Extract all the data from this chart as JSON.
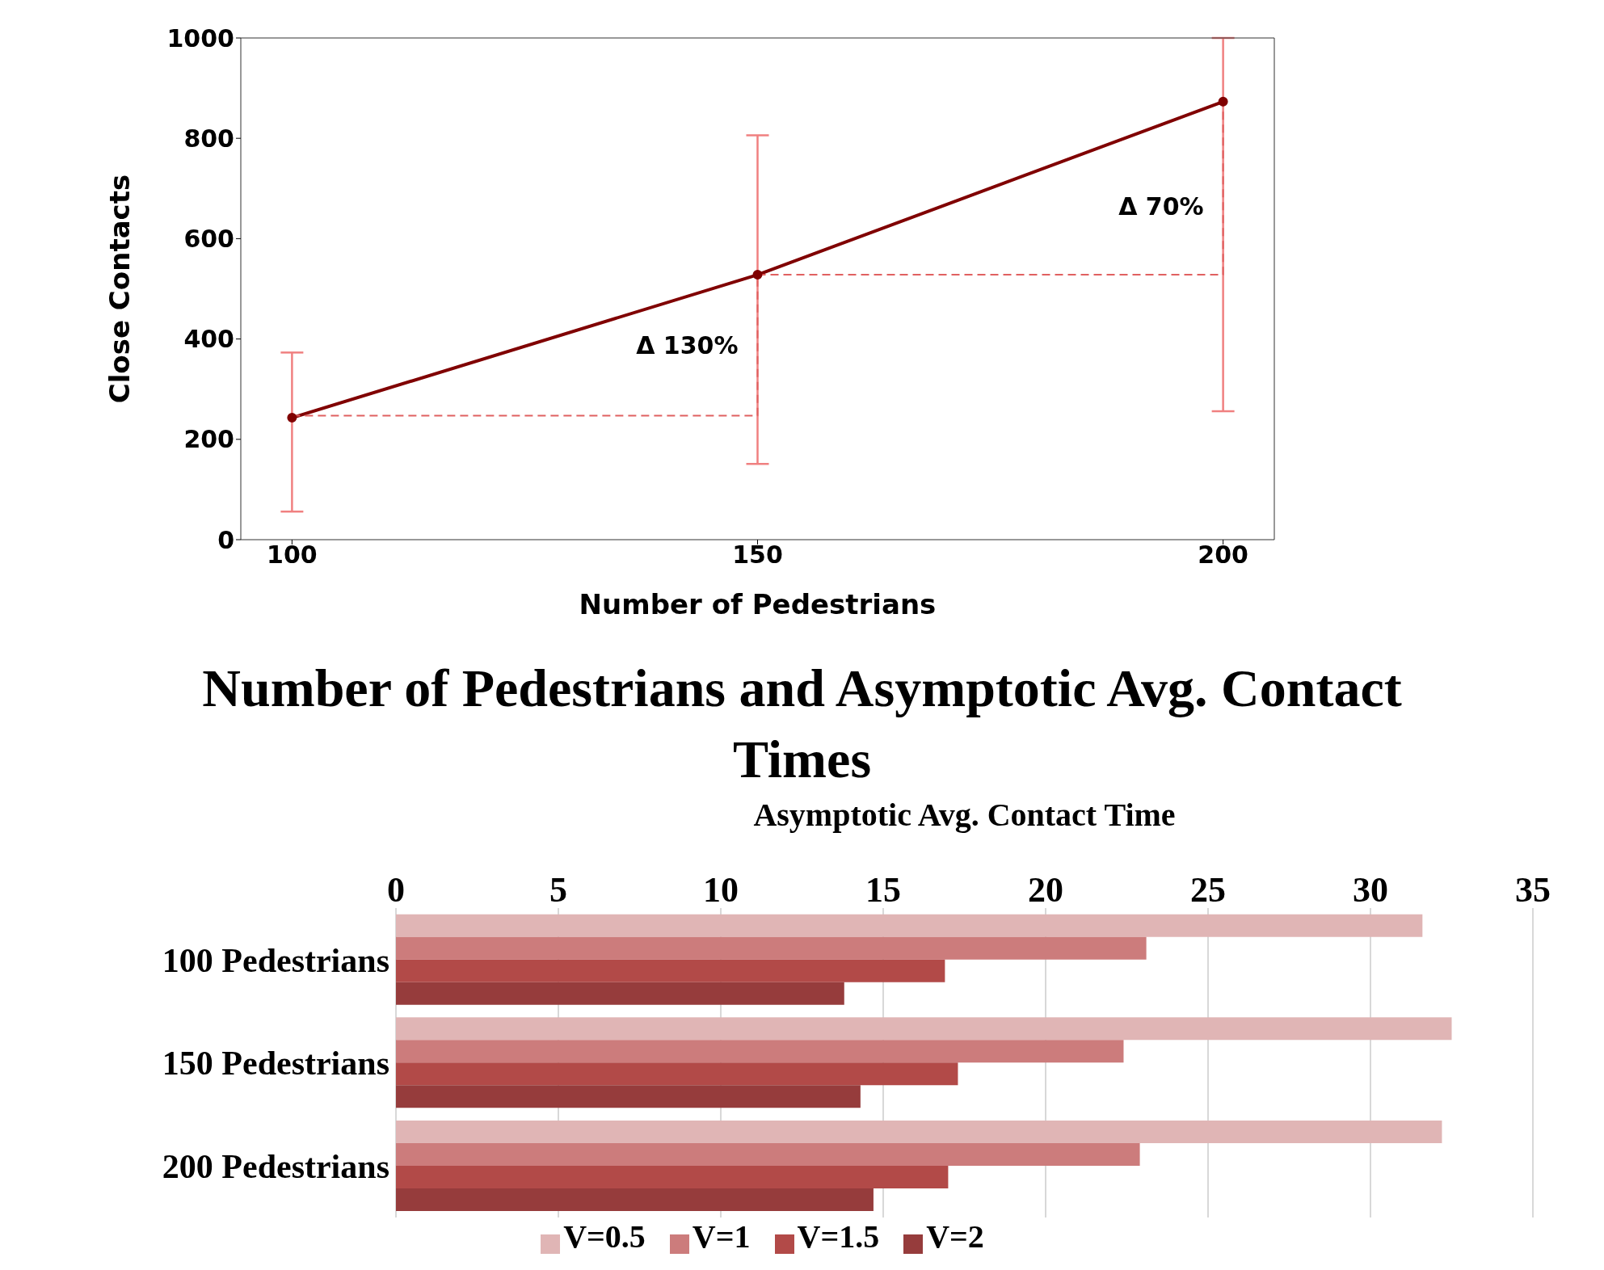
{
  "chart_data": [
    {
      "type": "line",
      "xlabel": "Number of Pedestrians",
      "ylabel": "Close Contacts",
      "xlim": [
        94.5,
        205.5
      ],
      "xticks": [
        100,
        150,
        200
      ],
      "ylim": [
        0,
        1000
      ],
      "yticks": [
        0,
        200,
        400,
        600,
        800,
        1000
      ],
      "grid": false,
      "legend": false,
      "marker": "circle",
      "line_style": "solid",
      "series": [
        {
          "x": [
            100,
            150,
            200
          ],
          "values": [
            243,
            528,
            873
          ],
          "color": "#800000",
          "errors": [
            [
              56,
              373
            ],
            [
              151,
              806
            ],
            [
              256,
              1000
            ]
          ]
        },
        {
          "x": [
            100,
            150,
            150
          ],
          "values": [
            247,
            247,
            528
          ],
          "color": "#e06060",
          "line_style": "dashed",
          "marker": "none"
        },
        {
          "x": [
            150,
            200,
            200
          ],
          "values": [
            528,
            528,
            873
          ],
          "color": "#e06060",
          "line_style": "dashed",
          "marker": "none"
        }
      ],
      "annotations": [
        {
          "text": "Δ 130%",
          "x": 150,
          "y": 387
        },
        {
          "text": "Δ 70%",
          "x": 200,
          "y": 665
        }
      ]
    },
    {
      "type": "bar",
      "orientation": "horizontal",
      "title": "Number of Pedestrians and Asymptotic Avg. Contact Times",
      "xlabel": "Asymptotic Avg. Contact Time",
      "categories": [
        "100 Pedestrians",
        "150 Pedestrians",
        "200 Pedestrians"
      ],
      "xlim": [
        0,
        35
      ],
      "xticks": [
        0,
        5,
        10,
        15,
        20,
        25,
        30,
        35
      ],
      "grid": "x",
      "legend": "bottom",
      "series": [
        {
          "name": "V=0.5",
          "color": "#e0b5b5",
          "values": [
            31.6,
            32.5,
            32.2
          ]
        },
        {
          "name": "V=1",
          "color": "#cc7c7c",
          "values": [
            23.1,
            22.4,
            22.9
          ]
        },
        {
          "name": "V=1.5",
          "color": "#b24a48",
          "values": [
            16.9,
            17.3,
            17.0
          ]
        },
        {
          "name": "V=2",
          "color": "#963c3c",
          "values": [
            13.8,
            14.3,
            14.7
          ]
        }
      ]
    }
  ]
}
